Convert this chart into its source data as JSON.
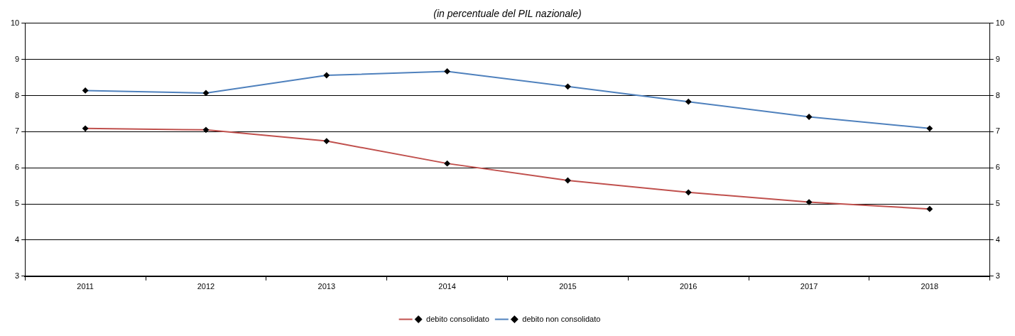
{
  "chart_data": {
    "type": "line",
    "subtitle": "(in percentuale del PIL nazionale)",
    "categories": [
      "2011",
      "2012",
      "2013",
      "2014",
      "2015",
      "2016",
      "2017",
      "2018"
    ],
    "series": [
      {
        "name": "debito consolidato",
        "color": "#c0504d",
        "values": [
          7.09,
          7.05,
          6.74,
          6.12,
          5.65,
          5.32,
          5.05,
          4.86
        ]
      },
      {
        "name": "debito non consolidato",
        "color": "#4f81bd",
        "values": [
          8.14,
          8.07,
          8.56,
          8.67,
          8.25,
          7.83,
          7.41,
          7.09
        ]
      }
    ],
    "ylim": [
      3,
      10
    ],
    "yticks": [
      3,
      4,
      5,
      6,
      7,
      8,
      9,
      10
    ],
    "y2lim": [
      3,
      10
    ],
    "y2ticks": [
      3,
      4,
      5,
      6,
      7,
      8,
      9,
      10
    ],
    "grid": "y",
    "legend": "bottom",
    "marker": "diamond",
    "line_style": "solid"
  }
}
